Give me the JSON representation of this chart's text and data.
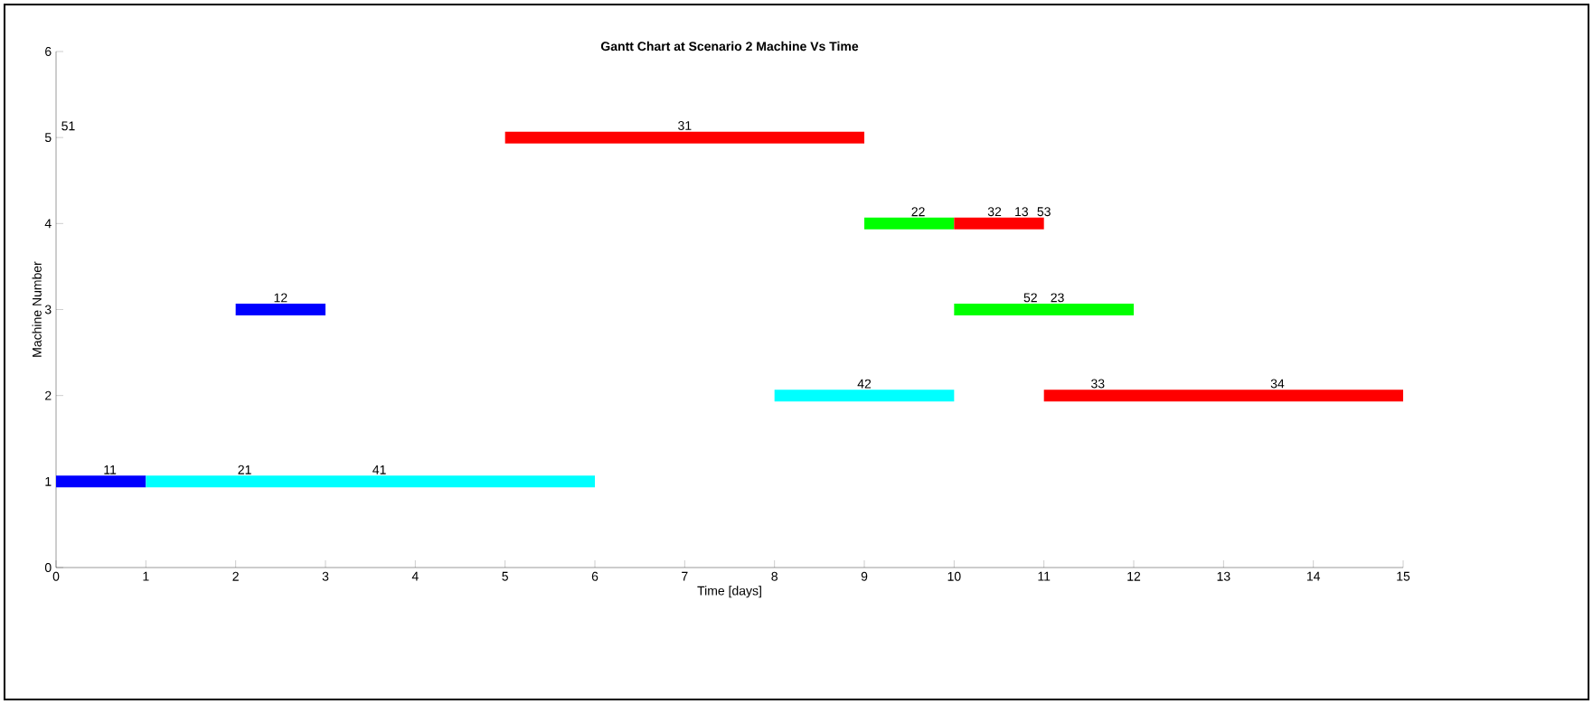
{
  "chart_data": {
    "type": "line",
    "title": "Gantt Chart at Scenario 2 Machine Vs Time",
    "xlabel": "Time [days]",
    "ylabel": "Machine Number",
    "xlim": [
      0,
      15
    ],
    "ylim": [
      0,
      6
    ],
    "xticks": [
      0,
      1,
      2,
      3,
      4,
      5,
      6,
      7,
      8,
      9,
      10,
      11,
      12,
      13,
      14,
      15
    ],
    "yticks": [
      0,
      1,
      2,
      3,
      4,
      5,
      6
    ],
    "grid": false,
    "marker": "none",
    "line_style": "solid",
    "series": [
      {
        "color": "#0000ff",
        "x": [
          0,
          1
        ],
        "values": [
          1,
          1
        ]
      },
      {
        "color": "#00ffff",
        "x": [
          1,
          6
        ],
        "values": [
          1,
          1
        ]
      },
      {
        "color": "#0000ff",
        "x": [
          2,
          3
        ],
        "values": [
          3,
          3
        ]
      },
      {
        "color": "#ff0000",
        "x": [
          5,
          9
        ],
        "values": [
          5,
          5
        ]
      },
      {
        "color": "#00ff00",
        "x": [
          9,
          10
        ],
        "values": [
          4,
          4
        ]
      },
      {
        "color": "#ff0000",
        "x": [
          10,
          11
        ],
        "values": [
          4,
          4
        ]
      },
      {
        "color": "#00ff00",
        "x": [
          10,
          12
        ],
        "values": [
          3,
          3
        ]
      },
      {
        "color": "#00ffff",
        "x": [
          8,
          10
        ],
        "values": [
          2,
          2
        ]
      },
      {
        "color": "#ff0000",
        "x": [
          11,
          15
        ],
        "values": [
          2,
          2
        ]
      }
    ],
    "annotations": [
      {
        "text": "11",
        "x": 0.6,
        "y": 1
      },
      {
        "text": "21",
        "x": 2.1,
        "y": 1
      },
      {
        "text": "41",
        "x": 3.6,
        "y": 1
      },
      {
        "text": "12",
        "x": 2.5,
        "y": 3
      },
      "51",
      {
        "text": "31",
        "x": 7,
        "y": 5
      },
      {
        "text": "22",
        "x": 9.6,
        "y": 4
      },
      {
        "text": "32",
        "x": 10.45,
        "y": 4
      },
      {
        "text": "13",
        "x": 10.75,
        "y": 4
      },
      {
        "text": "53",
        "x": 11,
        "y": 4
      },
      {
        "text": "52",
        "x": 10.85,
        "y": 3
      },
      {
        "text": "23",
        "x": 11.15,
        "y": 3
      },
      {
        "text": "42",
        "x": 9,
        "y": 2
      },
      {
        "text": "33",
        "x": 11.6,
        "y": 2
      },
      {
        "text": "34",
        "x": 13.6,
        "y": 2
      }
    ]
  }
}
